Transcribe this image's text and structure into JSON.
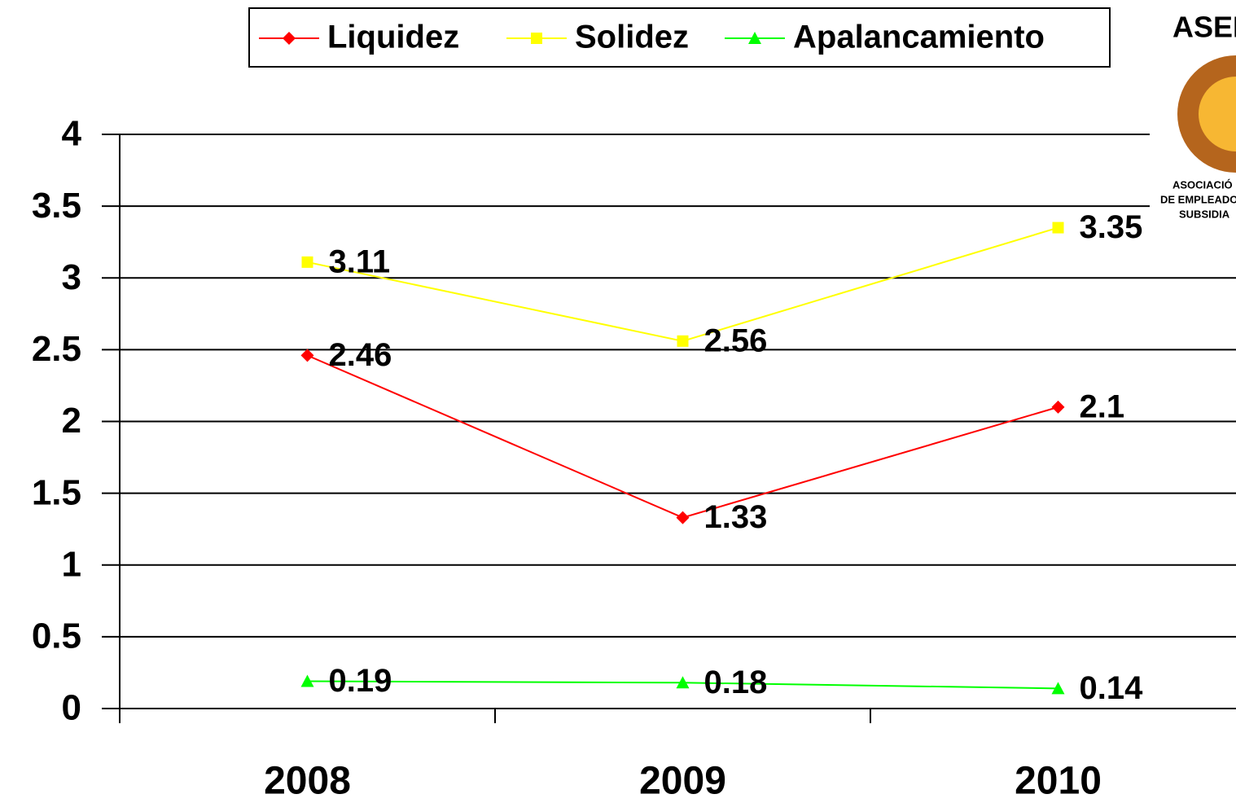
{
  "chart_data": {
    "type": "line",
    "categories": [
      "2008",
      "2009",
      "2010"
    ],
    "series": [
      {
        "name": "Liquidez",
        "color": "#ff0000",
        "marker": "diamond",
        "values": [
          2.46,
          1.33,
          2.1
        ]
      },
      {
        "name": "Solidez",
        "color": "#ffff00",
        "marker": "square",
        "values": [
          3.11,
          2.56,
          3.35
        ]
      },
      {
        "name": "Apalancamiento",
        "color": "#00ff00",
        "marker": "triangle",
        "values": [
          0.19,
          0.18,
          0.14
        ]
      }
    ],
    "ylim": [
      0,
      4
    ],
    "yticks": [
      0,
      0.5,
      1,
      1.5,
      2,
      2.5,
      3,
      3.5,
      4
    ],
    "grid": true,
    "legend": "top"
  },
  "logo": {
    "title": "ASEN",
    "lines": [
      "ASOCIACIÓ",
      "DE EMPLEADO",
      "SUBSIDIA"
    ]
  }
}
